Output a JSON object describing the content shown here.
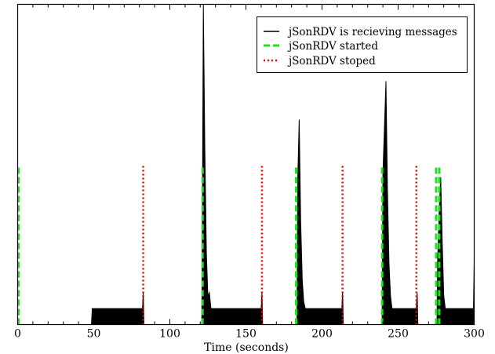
{
  "chart_data": {
    "type": "line",
    "title": "",
    "xlabel": "Time (seconds)",
    "ylabel": "",
    "xlim": [
      0,
      300
    ],
    "ylim": [
      0,
      1
    ],
    "x_ticks": [
      0,
      50,
      100,
      150,
      200,
      250,
      300
    ],
    "grid": false,
    "legend_position": "top-right",
    "series": [
      {
        "name": "jSonRDV is recieving messages",
        "style": "solid-fill",
        "color": "#000000",
        "points": [
          [
            0,
            0
          ],
          [
            48.5,
            0
          ],
          [
            49,
            0.05
          ],
          [
            82,
            0.05
          ],
          [
            82.5,
            0.1
          ],
          [
            83,
            0
          ],
          [
            121,
            0
          ],
          [
            121.5,
            0.45
          ],
          [
            122,
            0.999
          ],
          [
            123,
            0.55
          ],
          [
            124,
            0.22
          ],
          [
            125,
            0.09
          ],
          [
            126,
            0.1
          ],
          [
            127,
            0.05
          ],
          [
            160,
            0.05
          ],
          [
            160.5,
            0.1
          ],
          [
            161,
            0
          ],
          [
            183.5,
            0
          ],
          [
            184,
            0.45
          ],
          [
            185,
            0.64
          ],
          [
            186,
            0.32
          ],
          [
            187,
            0.14
          ],
          [
            188,
            0.07
          ],
          [
            189,
            0.05
          ],
          [
            213,
            0.05
          ],
          [
            213.5,
            0.1
          ],
          [
            214,
            0
          ],
          [
            239.5,
            0
          ],
          [
            240,
            0.47
          ],
          [
            242,
            0.76
          ],
          [
            243,
            0.42
          ],
          [
            244,
            0.19
          ],
          [
            245,
            0.09
          ],
          [
            246,
            0.05
          ],
          [
            262,
            0.05
          ],
          [
            262.5,
            0.1
          ],
          [
            263,
            0
          ],
          [
            275.5,
            0
          ],
          [
            276,
            0.2
          ],
          [
            277,
            0.36
          ],
          [
            278,
            0.46
          ],
          [
            279,
            0.25
          ],
          [
            280,
            0.09
          ],
          [
            281,
            0.05
          ],
          [
            299.5,
            0.05
          ],
          [
            300,
            0.2
          ]
        ]
      },
      {
        "name": "jSonRDV started",
        "style": "dashed",
        "color": "#22dd22",
        "x": [
          0.5,
          121.5,
          183,
          239.5,
          275,
          277
        ]
      },
      {
        "name": "jSonRDV stoped",
        "style": "dotted",
        "color": "#ee0000",
        "x": [
          82.5,
          160.5,
          213.5,
          262
        ]
      }
    ],
    "event_line_height": 0.5
  }
}
